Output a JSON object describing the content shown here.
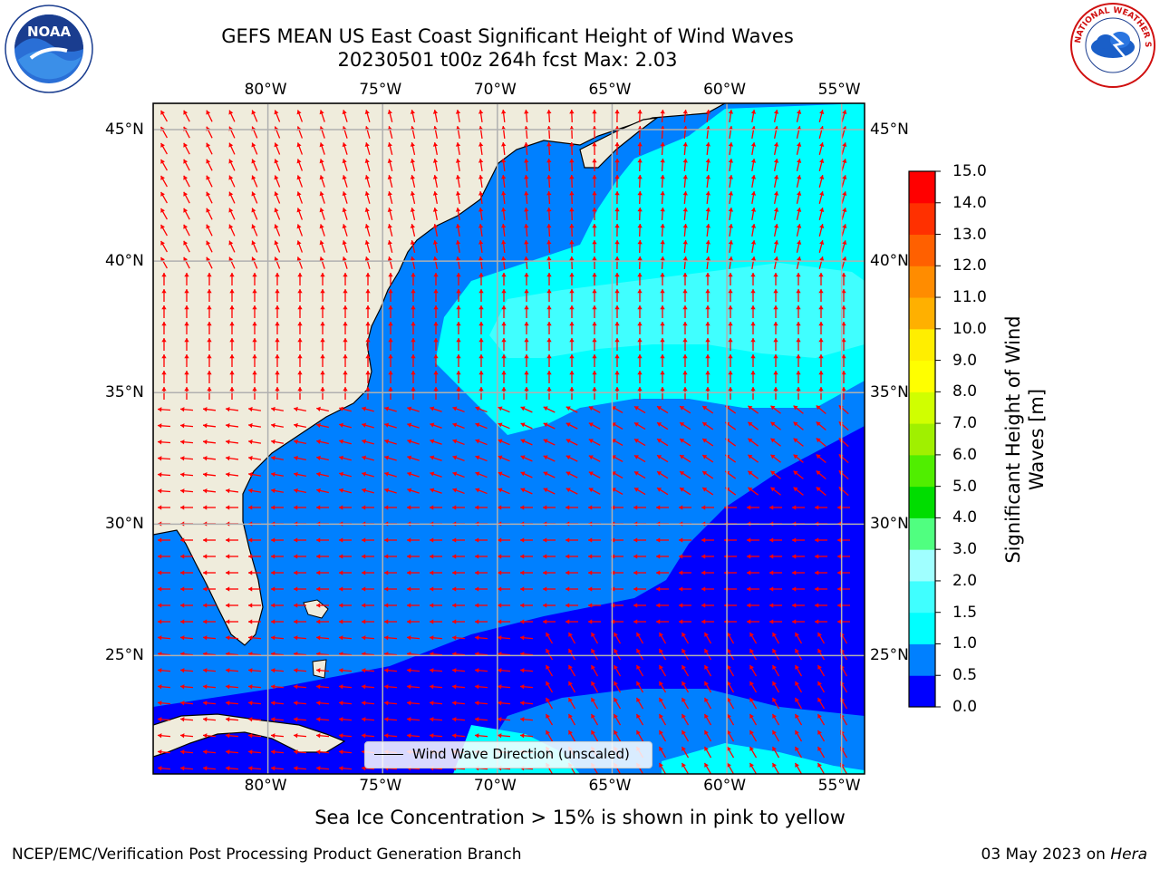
{
  "title_line1": "GEFS MEAN US East Coast Significant Height of Wind Waves",
  "title_line2": "20230501 t00z 264h fcst   Max: 2.03",
  "lon_ticks": [
    "80°W",
    "75°W",
    "70°W",
    "65°W",
    "60°W",
    "55°W"
  ],
  "lat_ticks": [
    "45°N",
    "40°N",
    "35°N",
    "30°N",
    "25°N"
  ],
  "legend_label": "Wind Wave Direction (unscaled)",
  "sea_ice_note": "Sea Ice Concentration > 15% is shown in pink to yellow",
  "footer_left": "NCEP/EMC/Verification Post Processing Product Generation Branch",
  "footer_date": "03 May 2023 on",
  "footer_machine": "Hera",
  "noaa_logo_text": "NOAA",
  "nws_logo_text": "NATIONAL WEATHER SERVICE",
  "colorbar": {
    "title": "Significant Height of Wind Waves [m]",
    "labels": [
      "15.0",
      "14.0",
      "13.0",
      "12.0",
      "11.0",
      "10.0",
      "9.0",
      "8.0",
      "7.0",
      "6.0",
      "5.0",
      "4.0",
      "3.0",
      "2.0",
      "1.5",
      "1.0",
      "0.5",
      "0.0"
    ],
    "colors_bottom_to_top": [
      "#0000ff",
      "#0080ff",
      "#00ffff",
      "#40ffff",
      "#a0ffff",
      "#50ff80",
      "#00dd00",
      "#50ee00",
      "#a0f000",
      "#d0ff00",
      "#ffff00",
      "#ffee00",
      "#ffb000",
      "#ff8c00",
      "#ff6000",
      "#ff3000",
      "#ff0000"
    ]
  },
  "map": {
    "lon_range": [
      -85,
      -54
    ],
    "lat_range": [
      20.5,
      46
    ],
    "land_color": "#efecdc",
    "arrow_color": "#ff0000",
    "grid_color": "#b0b0b0"
  }
}
